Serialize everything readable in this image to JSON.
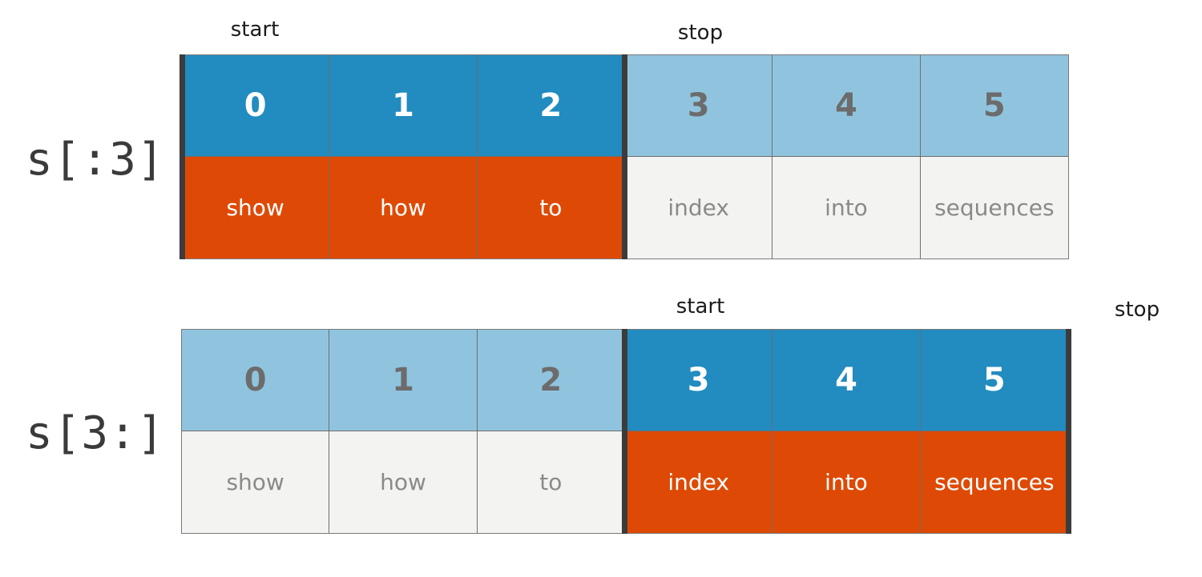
{
  "diagrams": [
    {
      "expression": "s[:3]",
      "start_label": "start",
      "stop_label": "stop",
      "indices": [
        "0",
        "1",
        "2",
        "3",
        "4",
        "5"
      ],
      "words": [
        "show",
        "how",
        "to",
        "index",
        "into",
        "sequences"
      ],
      "selected": [
        true,
        true,
        true,
        false,
        false,
        false
      ]
    },
    {
      "expression": "s[3:]",
      "start_label": "start",
      "stop_label": "stop",
      "indices": [
        "0",
        "1",
        "2",
        "3",
        "4",
        "5"
      ],
      "words": [
        "show",
        "how",
        "to",
        "index",
        "into",
        "sequences"
      ],
      "selected": [
        false,
        false,
        false,
        true,
        true,
        true
      ]
    }
  ],
  "colors": {
    "selected_index_bg": "#228bbf",
    "unselected_index_bg": "#90c4de",
    "selected_word_bg": "#de4a06",
    "unselected_word_bg": "#f3f3f1"
  }
}
